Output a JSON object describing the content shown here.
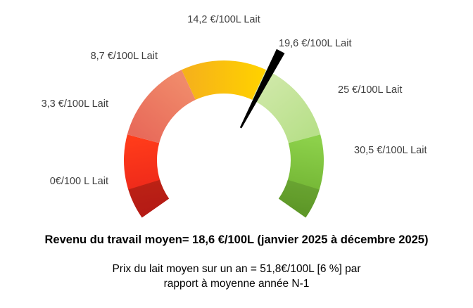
{
  "chart_data": {
    "type": "gauge",
    "scale_labels": [
      "0€/100 L Lait",
      "3,3 €/100L Lait",
      "8,7 €/100L Lait",
      "14,2 €/100L Lait",
      "19,6 €/100L Lait",
      "25 €/100L Lait",
      "30,5 €/100L Lait"
    ],
    "scale_values": [
      0,
      3.3,
      8.7,
      14.2,
      19.6,
      25,
      30.5
    ],
    "needle_value": 18.6,
    "segment_colors": [
      [
        "#e8231b",
        "#ff3b1a"
      ],
      [
        "#e86a5a",
        "#f08a6a"
      ],
      [
        "#f6b21a",
        "#ffd000"
      ],
      [
        "#cfe8a8",
        "#b8e08a"
      ],
      [
        "#8cd04a",
        "#6cae2e"
      ]
    ],
    "needle_color": "#000000"
  },
  "headline": "Revenu du travail moyen= 18,6 €/100L (janvier 2025 à décembre 2025)",
  "subline_1": "Prix du lait moyen sur un an = 51,8€/100L [6 %] par",
  "subline_2": "rapport à moyenne année N-1"
}
